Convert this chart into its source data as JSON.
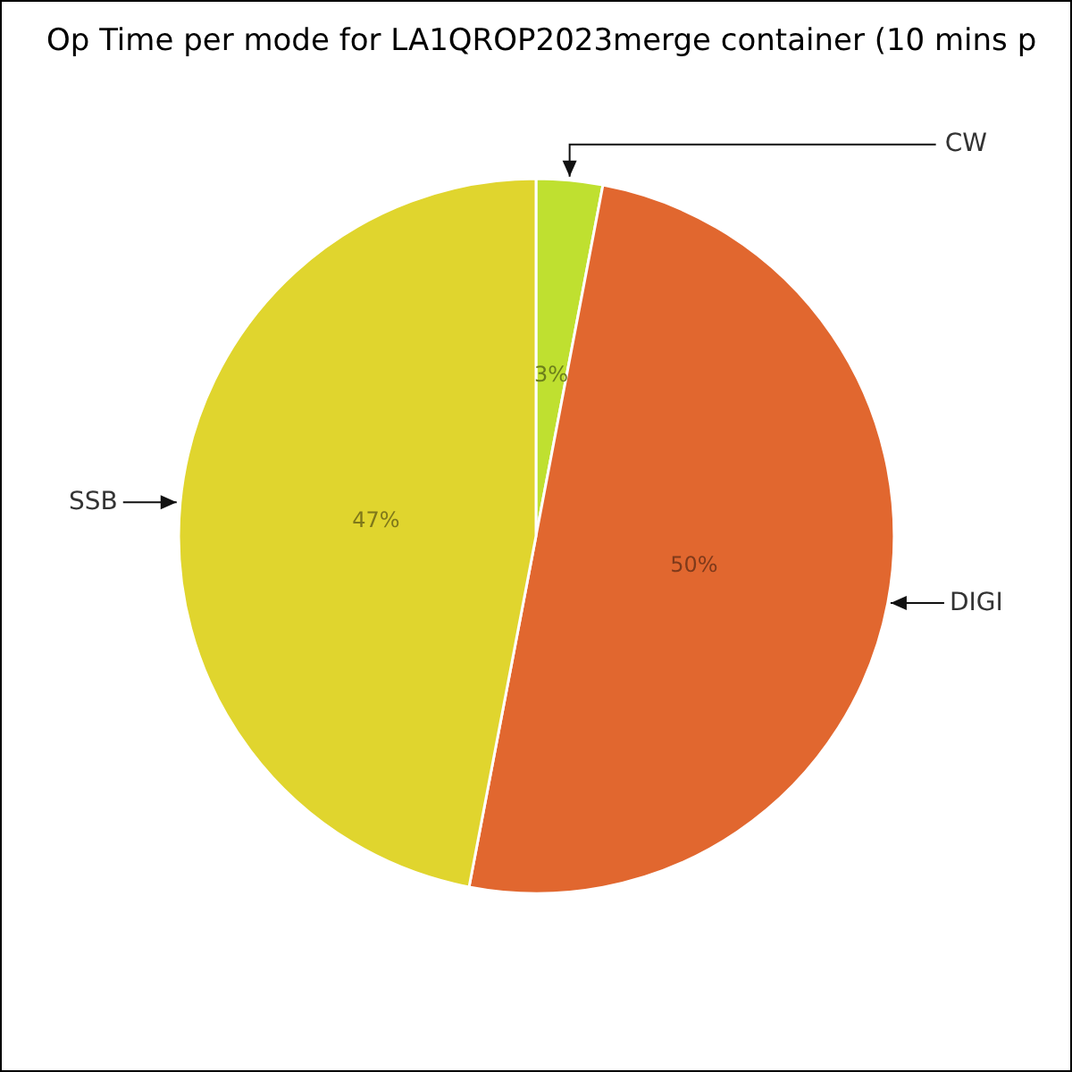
{
  "chart_data": {
    "type": "pie",
    "title": "Op Time per mode for LA1QROP2023merge container (10 mins p",
    "categories": [
      "CW",
      "DIGI",
      "SSB"
    ],
    "values": [
      3,
      50,
      47
    ],
    "colors": [
      "#bfe030",
      "#e1672f",
      "#e0d52e"
    ],
    "value_labels": [
      "3%",
      "50%",
      "47%"
    ]
  }
}
